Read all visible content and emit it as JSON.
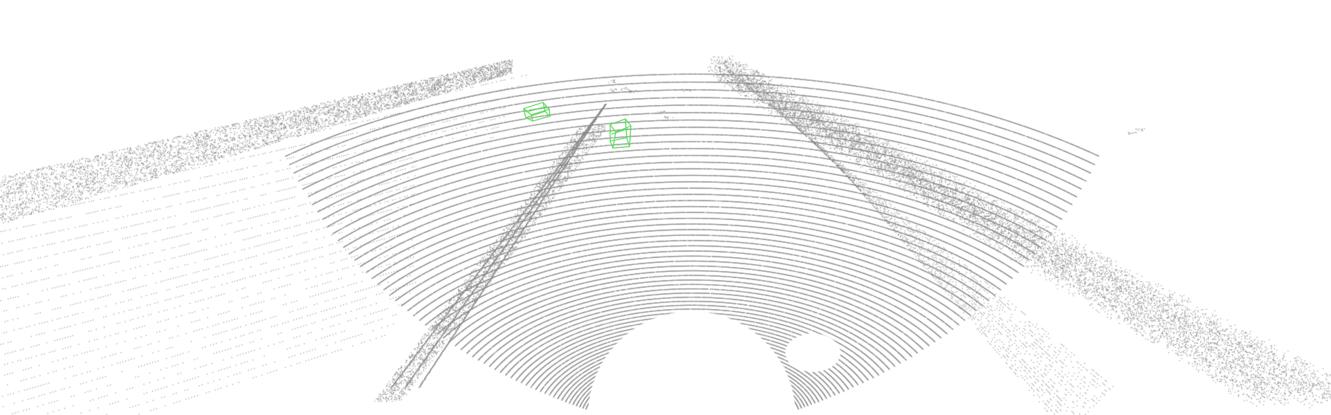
{
  "scene": {
    "background_color": "#ffffff",
    "point_color": "#8a8a8a",
    "detection_box_color": "#55dd55"
  },
  "detections": [
    {
      "id": "car-left"
    },
    {
      "id": "car-center"
    }
  ]
}
